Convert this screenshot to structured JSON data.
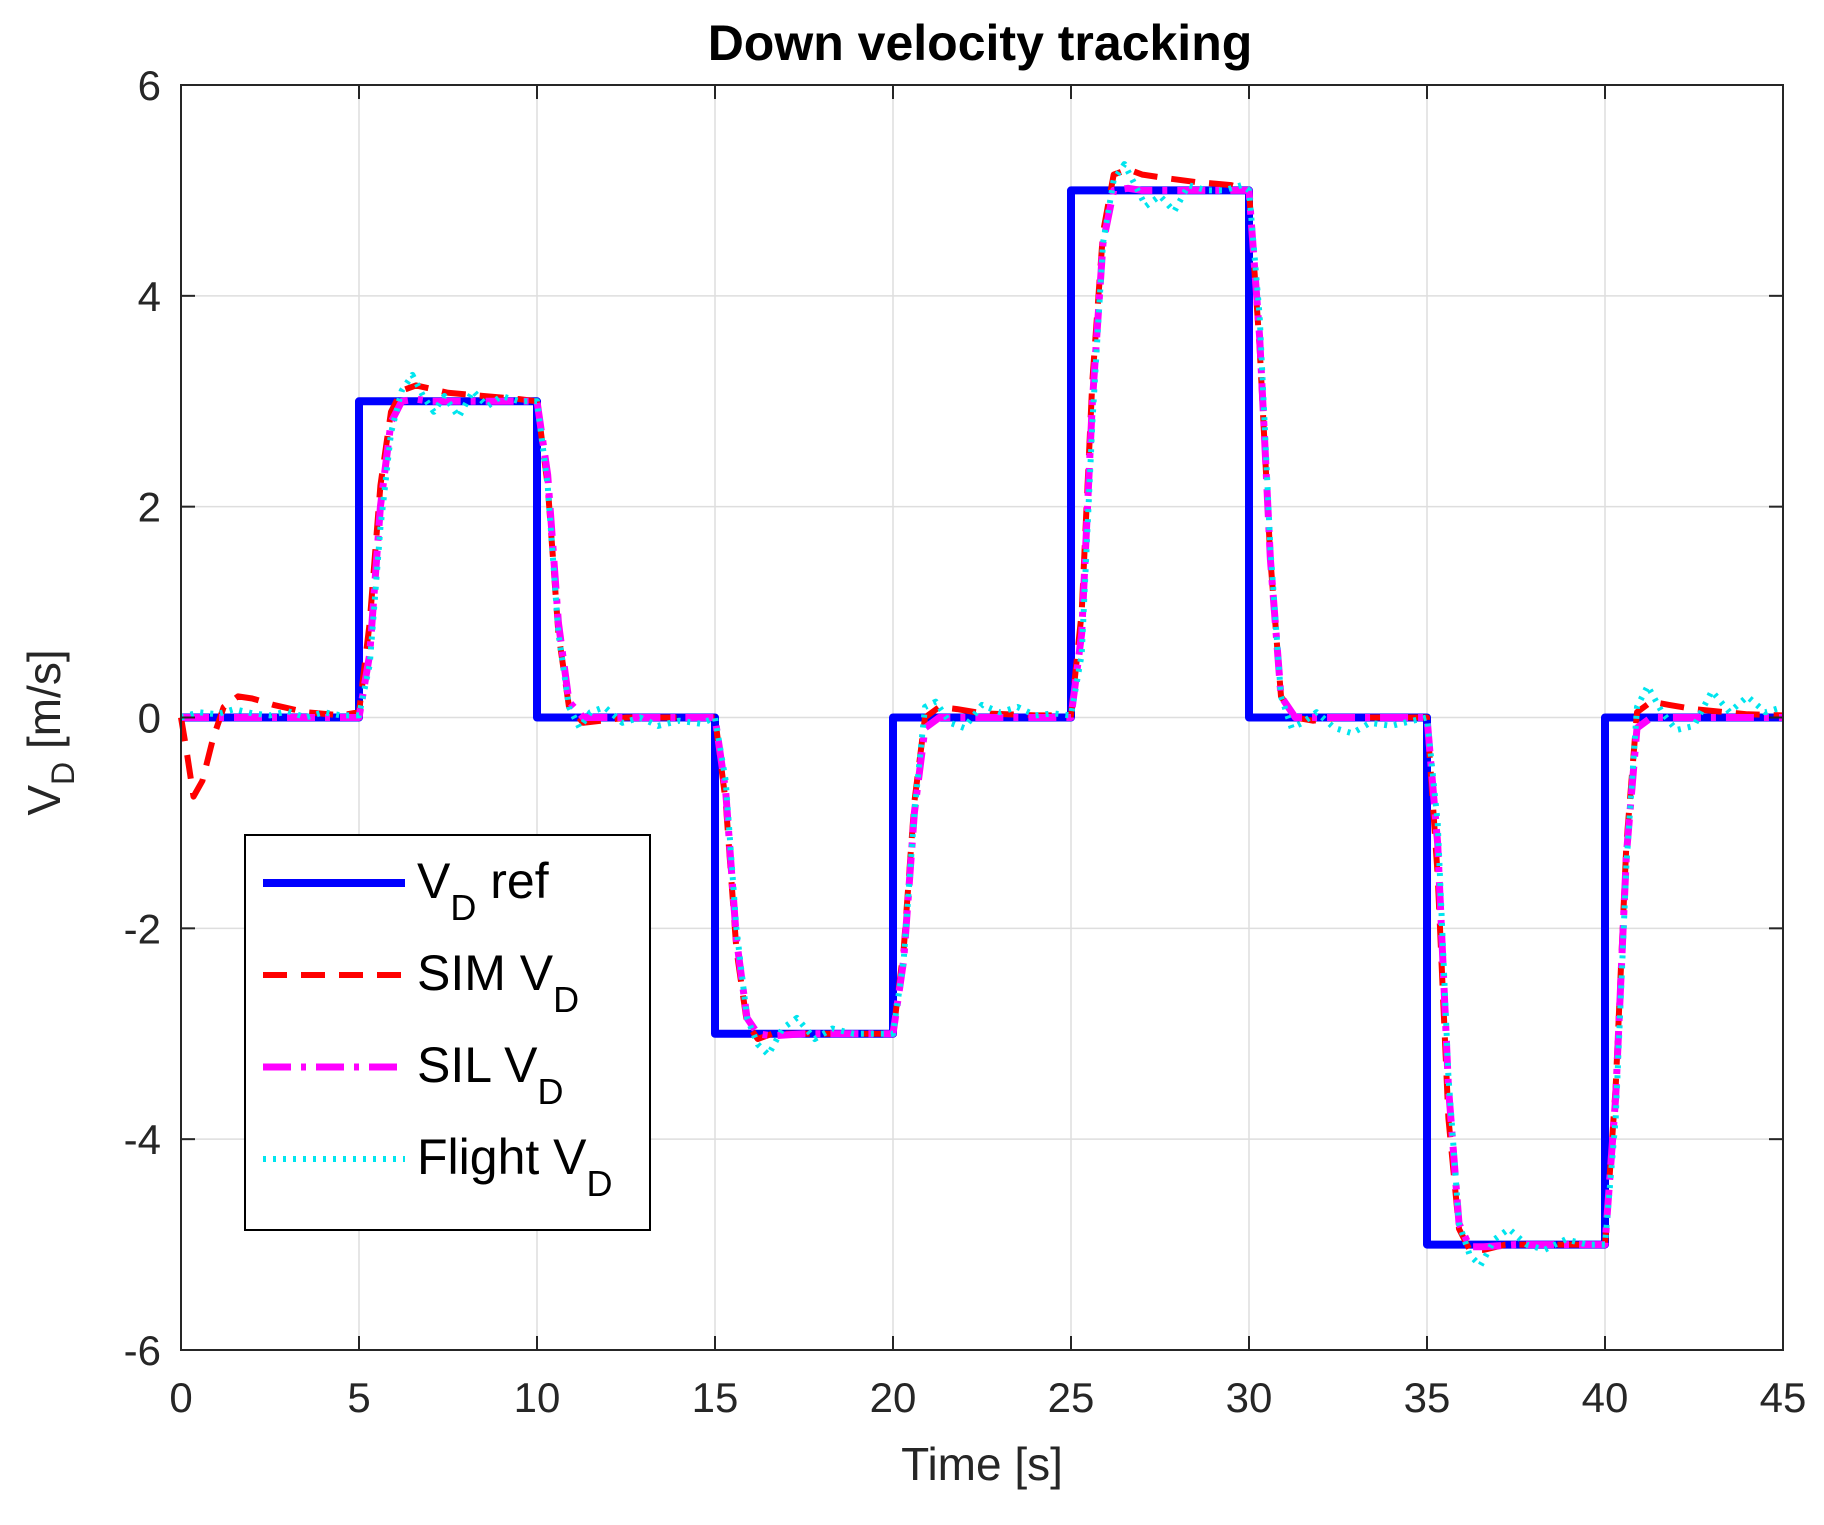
{
  "chart_data": {
    "type": "line",
    "title": "Down velocity tracking",
    "xlabel": "Time [s]",
    "ylabel": {
      "main": "V",
      "sub": "D",
      "unit": " [m/s]"
    },
    "xlim": [
      0,
      45
    ],
    "ylim": [
      -6,
      6
    ],
    "xticks": [
      0,
      5,
      10,
      15,
      20,
      25,
      30,
      35,
      40,
      45
    ],
    "yticks": [
      -6,
      -4,
      -2,
      0,
      2,
      4,
      6
    ],
    "xtick_labels": [
      "0",
      "5",
      "10",
      "15",
      "20",
      "25",
      "30",
      "35",
      "40",
      "45"
    ],
    "ytick_labels": [
      "-6",
      "-4",
      "-2",
      "0",
      "2",
      "4",
      "6"
    ],
    "grid": true,
    "legend_position": "lower-left",
    "series": [
      {
        "name": "VD ref",
        "legend_main": "V",
        "legend_sub": "D",
        "legend_suffix": " ref",
        "color": "#0000ff",
        "style": "solid",
        "x": [
          0,
          5,
          5,
          10,
          10,
          15,
          15,
          20,
          20,
          25,
          25,
          30,
          30,
          35,
          35,
          40,
          40,
          45
        ],
        "y": [
          0,
          0,
          3,
          3,
          0,
          0,
          -3,
          -3,
          0,
          0,
          5,
          5,
          0,
          0,
          -5,
          -5,
          0,
          0
        ]
      },
      {
        "name": "SIM VD",
        "legend_main": "SIM V",
        "legend_sub": "D",
        "legend_suffix": "",
        "color": "#ff0000",
        "style": "dashed",
        "x": [
          0,
          0.15,
          0.35,
          0.6,
          0.9,
          1.2,
          1.6,
          2.0,
          2.6,
          3.5,
          4.5,
          5.0,
          5.3,
          5.6,
          5.9,
          6.2,
          6.6,
          7.0,
          7.5,
          8.5,
          9.5,
          10.0,
          10.3,
          10.6,
          10.9,
          11.3,
          11.8,
          12.5,
          13.5,
          15.0,
          15.3,
          15.6,
          15.9,
          16.2,
          16.6,
          17.2,
          18.5,
          20.0,
          20.3,
          20.6,
          20.9,
          21.3,
          21.8,
          22.5,
          24.0,
          25.0,
          25.3,
          25.6,
          25.9,
          26.2,
          26.6,
          27.0,
          27.6,
          28.5,
          29.5,
          30.0,
          30.3,
          30.6,
          30.9,
          31.3,
          31.8,
          32.5,
          34.0,
          35.0,
          35.3,
          35.6,
          35.9,
          36.2,
          36.6,
          37.2,
          38.5,
          40.0,
          40.3,
          40.6,
          40.9,
          41.3,
          41.8,
          42.5,
          44.0,
          45.0
        ],
        "y": [
          0,
          -0.3,
          -0.75,
          -0.6,
          -0.2,
          0.1,
          0.2,
          0.18,
          0.12,
          0.05,
          0.02,
          0.05,
          0.9,
          2.2,
          2.9,
          3.1,
          3.15,
          3.12,
          3.08,
          3.05,
          3.02,
          3.0,
          2.2,
          0.8,
          0.1,
          -0.05,
          -0.03,
          0.0,
          0.0,
          0.0,
          -0.8,
          -2.2,
          -2.9,
          -3.05,
          -3.0,
          -3.0,
          -3.0,
          -3.0,
          -2.2,
          -0.8,
          0.0,
          0.1,
          0.08,
          0.04,
          0.02,
          0.02,
          1.0,
          3.2,
          4.6,
          5.15,
          5.2,
          5.15,
          5.12,
          5.08,
          5.05,
          5.0,
          3.5,
          1.5,
          0.2,
          0.0,
          -0.03,
          0.0,
          0.0,
          0.0,
          -1.5,
          -3.8,
          -4.85,
          -5.05,
          -5.05,
          -5.0,
          -5.0,
          -5.0,
          -3.5,
          -1.2,
          0.05,
          0.15,
          0.12,
          0.08,
          0.03,
          0.02
        ]
      },
      {
        "name": "SIL VD",
        "legend_main": "SIL V",
        "legend_sub": "D",
        "legend_suffix": "",
        "color": "#ff00ff",
        "style": "dashdot",
        "x": [
          0,
          2,
          4,
          5.0,
          5.3,
          5.6,
          5.9,
          6.2,
          6.6,
          7.0,
          8.0,
          9.5,
          10.0,
          10.3,
          10.6,
          10.9,
          11.3,
          11.8,
          13.0,
          15.0,
          15.3,
          15.6,
          15.9,
          16.2,
          16.6,
          17.5,
          20.0,
          20.3,
          20.6,
          20.9,
          21.3,
          21.8,
          23.0,
          25.0,
          25.3,
          25.6,
          25.9,
          26.2,
          26.6,
          27.0,
          28.0,
          30.0,
          30.3,
          30.6,
          30.9,
          31.3,
          31.8,
          33.0,
          35.0,
          35.3,
          35.6,
          35.9,
          36.2,
          36.6,
          37.5,
          40.0,
          40.3,
          40.6,
          40.9,
          41.3,
          41.8,
          43.0,
          45.0
        ],
        "y": [
          0,
          0,
          0,
          0,
          0.6,
          2.0,
          2.8,
          3.0,
          3.02,
          3.0,
          3.0,
          3.0,
          3.0,
          2.3,
          0.9,
          0.15,
          0.0,
          0.0,
          0.0,
          0.0,
          -0.7,
          -2.1,
          -2.85,
          -3.0,
          -3.02,
          -3.0,
          -3.0,
          -2.3,
          -0.9,
          -0.1,
          0.0,
          0.0,
          0.0,
          0.0,
          0.8,
          3.0,
          4.5,
          5.0,
          5.02,
          5.0,
          5.0,
          5.0,
          3.6,
          1.5,
          0.2,
          0.0,
          0.0,
          0.0,
          0.0,
          -1.2,
          -3.5,
          -4.8,
          -5.02,
          -5.02,
          -5.0,
          -5.0,
          -3.6,
          -1.3,
          -0.1,
          0.0,
          0.0,
          0.0,
          0.0
        ]
      },
      {
        "name": "Flight VD",
        "legend_main": "Flight V",
        "legend_sub": "D",
        "legend_suffix": "",
        "color": "#00e5ee",
        "style": "dotted",
        "x": [
          0,
          0.5,
          1.0,
          1.5,
          2.0,
          2.5,
          3.0,
          3.5,
          4.0,
          4.5,
          5.0,
          5.3,
          5.6,
          5.9,
          6.2,
          6.5,
          6.8,
          7.1,
          7.4,
          7.8,
          8.2,
          8.6,
          9.0,
          9.5,
          10.0,
          10.3,
          10.6,
          10.9,
          11.2,
          11.5,
          11.9,
          12.4,
          12.9,
          13.4,
          14.0,
          14.6,
          15.0,
          15.3,
          15.6,
          15.9,
          16.2,
          16.5,
          16.9,
          17.3,
          17.8,
          18.3,
          18.9,
          19.5,
          20.0,
          20.3,
          20.6,
          20.9,
          21.2,
          21.6,
          22.0,
          22.5,
          23.0,
          23.5,
          24.0,
          24.5,
          25.0,
          25.3,
          25.6,
          25.9,
          26.2,
          26.5,
          26.8,
          27.1,
          27.5,
          27.9,
          28.3,
          28.8,
          29.3,
          29.8,
          30.0,
          30.3,
          30.6,
          30.9,
          31.2,
          31.5,
          31.9,
          32.4,
          32.9,
          33.4,
          34.0,
          34.6,
          35.0,
          35.3,
          35.6,
          35.9,
          36.2,
          36.5,
          36.9,
          37.3,
          37.8,
          38.3,
          38.9,
          39.5,
          40.0,
          40.3,
          40.6,
          40.9,
          41.2,
          41.6,
          42.0,
          42.5,
          43.0,
          43.5,
          44.0,
          44.5,
          45.0
        ],
        "y": [
          0,
          0.05,
          0.03,
          0.08,
          0.04,
          0.02,
          0.06,
          0.0,
          0.05,
          0.02,
          0.02,
          0.5,
          1.8,
          2.7,
          3.1,
          3.25,
          3.05,
          2.9,
          3.05,
          2.85,
          3.1,
          2.95,
          3.05,
          3.0,
          3.0,
          2.2,
          0.8,
          0.1,
          -0.1,
          0.05,
          0.1,
          -0.05,
          0.0,
          -0.08,
          -0.03,
          -0.06,
          0.0,
          -0.6,
          -2.0,
          -2.85,
          -3.1,
          -3.2,
          -2.95,
          -2.85,
          -3.05,
          -2.95,
          -3.0,
          -3.0,
          -3.0,
          -2.3,
          -0.9,
          0.1,
          0.15,
          -0.05,
          -0.1,
          0.12,
          0.05,
          0.1,
          0.02,
          0.04,
          0.02,
          0.6,
          2.8,
          4.5,
          5.1,
          5.25,
          5.05,
          4.85,
          4.95,
          4.8,
          5.05,
          5.0,
          5.0,
          5.05,
          5.0,
          3.8,
          1.6,
          0.2,
          -0.1,
          -0.05,
          0.05,
          -0.1,
          -0.15,
          -0.05,
          -0.08,
          -0.03,
          0.0,
          -1.0,
          -3.4,
          -4.8,
          -5.1,
          -5.2,
          -4.95,
          -4.85,
          -5.0,
          -5.05,
          -4.95,
          -5.0,
          -5.0,
          -3.8,
          -1.4,
          0.1,
          0.3,
          0.05,
          -0.12,
          -0.08,
          0.25,
          0.05,
          0.2,
          0.05,
          0.1
        ]
      }
    ]
  }
}
